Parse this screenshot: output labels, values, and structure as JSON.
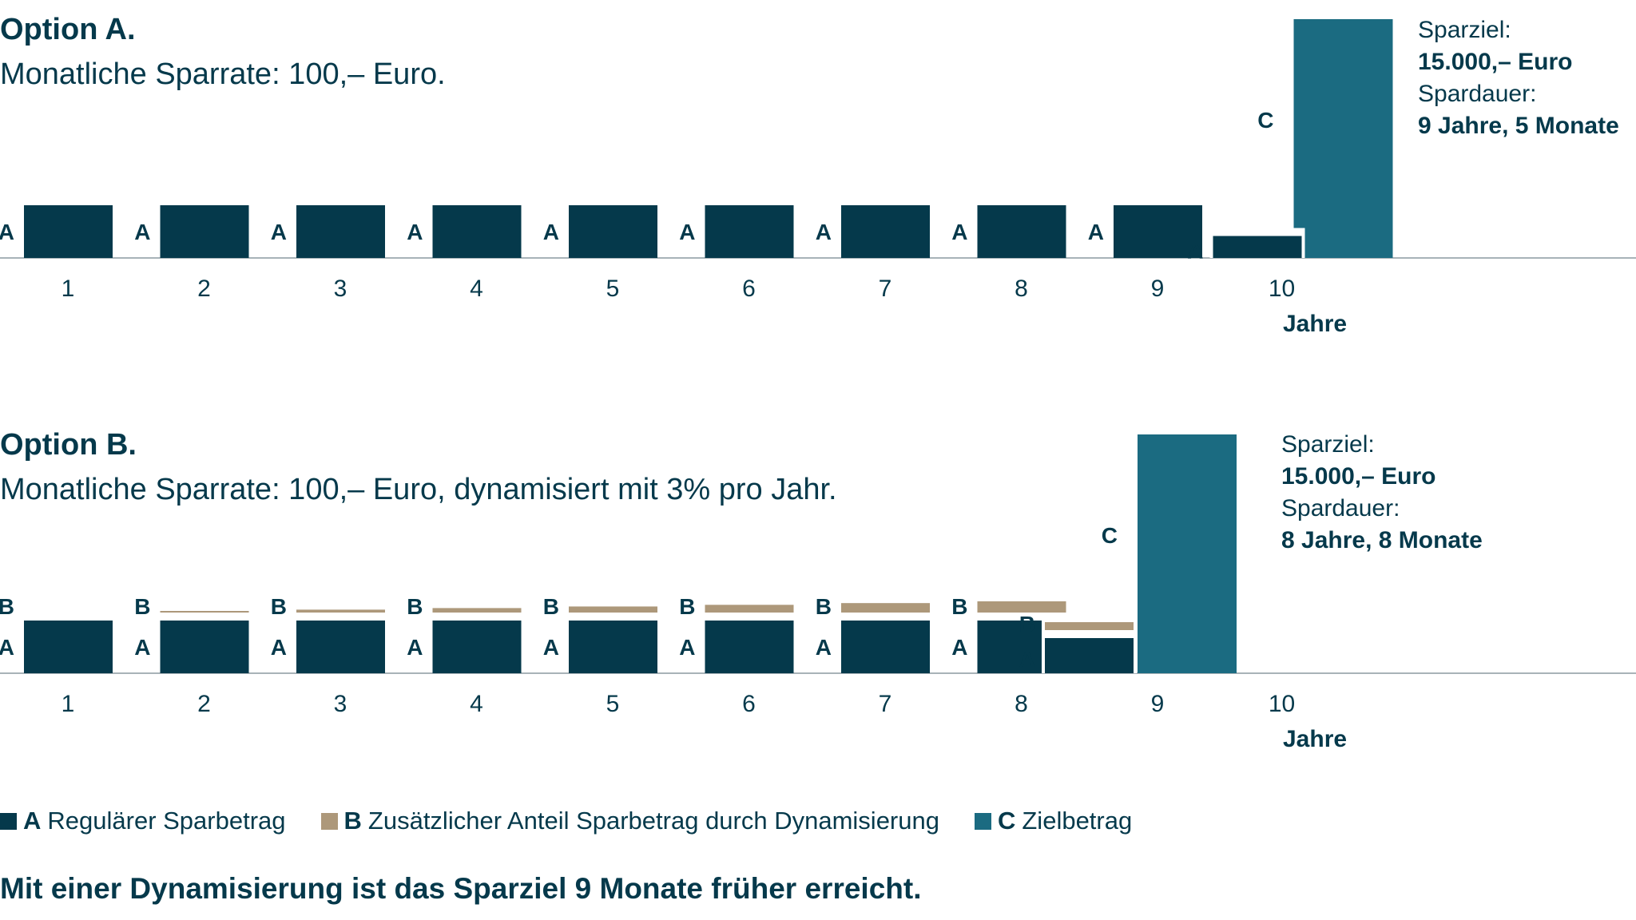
{
  "colors": {
    "a": "#05394b",
    "b": "#ad987a",
    "c": "#1b6b81",
    "axis": "#a8b3b8",
    "text": "#05394b"
  },
  "legend": [
    {
      "key": "A",
      "label": "Regulärer Sparbetrag",
      "color": "#05394b"
    },
    {
      "key": "B",
      "label": "Zusätzlicher Anteil Sparbetrag durch Dynamisierung",
      "color": "#ad987a"
    },
    {
      "key": "C",
      "label": "Zielbetrag",
      "color": "#1b6b81"
    }
  ],
  "conclusion": "Mit einer Dynamisierung ist das Sparziel 9 Monate früher erreicht.",
  "chart_data": [
    {
      "type": "bar",
      "title": "Option A.",
      "subtitle": "Monatliche Sparrate: 100,– Euro.",
      "xlabel": "Jahre",
      "categories": [
        "1",
        "2",
        "3",
        "4",
        "5",
        "6",
        "7",
        "8",
        "9",
        "10"
      ],
      "series": [
        {
          "name": "A",
          "values": [
            1200,
            1200,
            1200,
            1200,
            1200,
            1200,
            1200,
            1200,
            1200,
            500
          ]
        },
        {
          "name": "B",
          "values": [
            0,
            0,
            0,
            0,
            0,
            0,
            0,
            0,
            0,
            0
          ]
        }
      ],
      "target": {
        "name": "C",
        "value": 15000
      },
      "info": {
        "goal_label": "Sparziel:",
        "goal_value": "15.000,– Euro",
        "duration_label": "Spardauer:",
        "duration_value": "9 Jahre, 5 Monate"
      }
    },
    {
      "type": "bar",
      "title": "Option B.",
      "subtitle": "Monatliche Sparrate: 100,– Euro, dynamisiert mit 3% pro Jahr.",
      "xlabel": "Jahre",
      "categories": [
        "1",
        "2",
        "3",
        "4",
        "5",
        "6",
        "7",
        "8",
        "9",
        "10"
      ],
      "series": [
        {
          "name": "A",
          "values": [
            1200,
            1200,
            1200,
            1200,
            1200,
            1200,
            1200,
            1200,
            800,
            0
          ]
        },
        {
          "name": "B",
          "values": [
            0,
            36,
            73,
            113,
            153,
            195,
            239,
            284,
            201,
            0
          ]
        }
      ],
      "target": {
        "name": "C",
        "value": 15000
      },
      "info": {
        "goal_label": "Sparziel:",
        "goal_value": "15.000,– Euro",
        "duration_label": "Spardauer:",
        "duration_value": "8 Jahre, 8 Monate"
      }
    }
  ]
}
